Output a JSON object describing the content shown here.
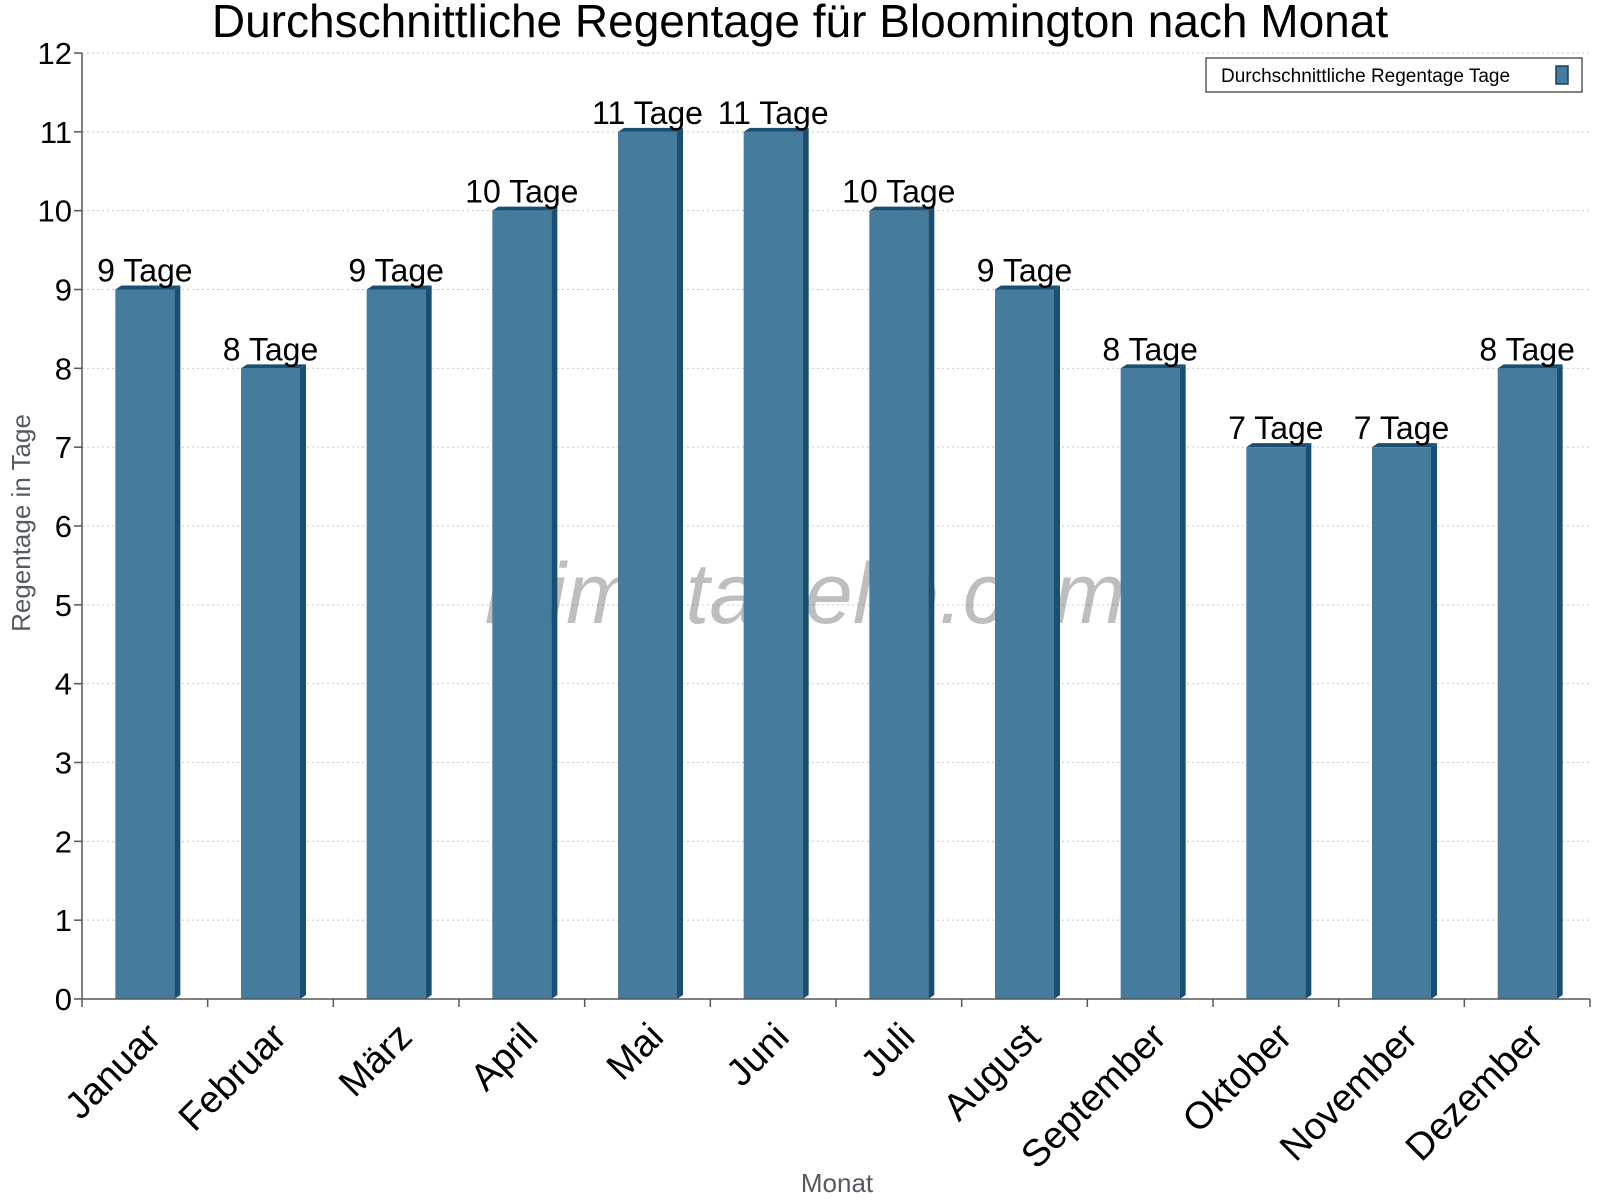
{
  "chart_data": {
    "type": "bar",
    "title": "Durchschnittliche Regentage für Bloomington nach Monat",
    "xlabel": "Monat",
    "ylabel": "Regentage in Tage",
    "categories": [
      "Januar",
      "Februar",
      "März",
      "April",
      "Mai",
      "Juni",
      "Juli",
      "August",
      "September",
      "Oktober",
      "November",
      "Dezember"
    ],
    "series": [
      {
        "name": "Durchschnittliche Regentage Tage",
        "values": [
          9,
          8,
          9,
          10,
          11,
          11,
          10,
          9,
          8,
          7,
          7,
          8
        ],
        "color": "#457b9d"
      }
    ],
    "data_labels": [
      "9 Tage",
      "8 Tage",
      "9 Tage",
      "10 Tage",
      "11 Tage",
      "11 Tage",
      "10 Tage",
      "9 Tage",
      "8 Tage",
      "7 Tage",
      "7 Tage",
      "8 Tage"
    ],
    "ylim": [
      0,
      12
    ],
    "yticks": [
      0,
      1,
      2,
      3,
      4,
      5,
      6,
      7,
      8,
      9,
      10,
      11,
      12
    ],
    "grid": true,
    "legend_position": "top-right",
    "watermark": "klimatabelle.com"
  }
}
